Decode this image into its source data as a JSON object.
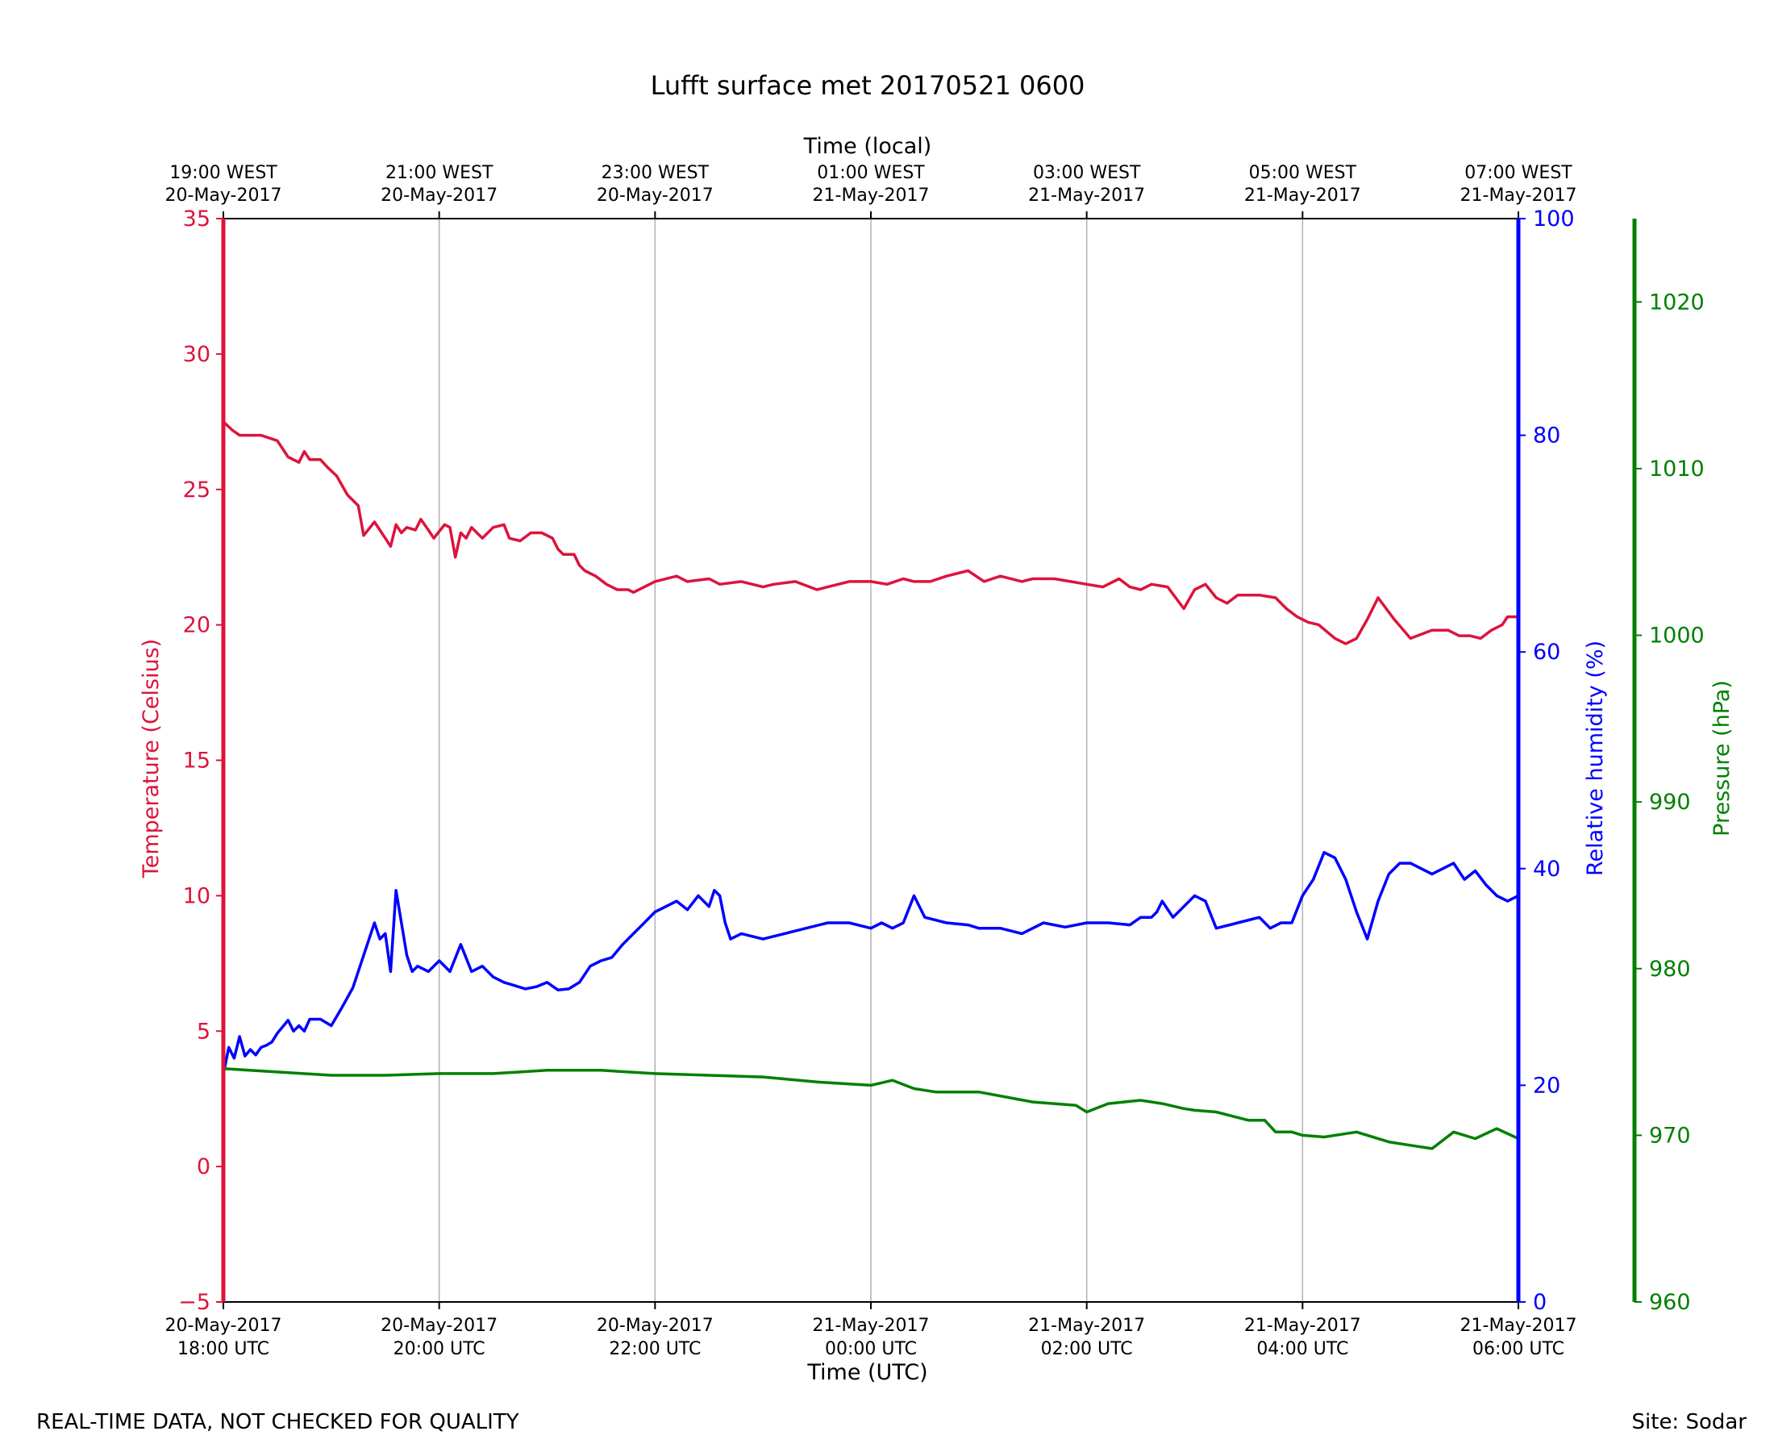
{
  "chart_data": {
    "type": "line",
    "title": "Lufft surface met 20170521 0600",
    "xlabel": "Time (UTC)",
    "x2label": "Time (local)",
    "xlim": [
      0,
      12
    ],
    "xticks": [
      {
        "hour": 0,
        "line1": "20-May-2017",
        "line2": "18:00 UTC"
      },
      {
        "hour": 2,
        "line1": "20-May-2017",
        "line2": "20:00 UTC"
      },
      {
        "hour": 4,
        "line1": "20-May-2017",
        "line2": "22:00 UTC"
      },
      {
        "hour": 6,
        "line1": "21-May-2017",
        "line2": "00:00 UTC"
      },
      {
        "hour": 8,
        "line1": "21-May-2017",
        "line2": "02:00 UTC"
      },
      {
        "hour": 10,
        "line1": "21-May-2017",
        "line2": "04:00 UTC"
      },
      {
        "hour": 12,
        "line1": "21-May-2017",
        "line2": "06:00 UTC"
      }
    ],
    "x2ticks": [
      {
        "hour": 0,
        "line1": "19:00 WEST",
        "line2": "20-May-2017"
      },
      {
        "hour": 2,
        "line1": "21:00 WEST",
        "line2": "20-May-2017"
      },
      {
        "hour": 4,
        "line1": "23:00 WEST",
        "line2": "20-May-2017"
      },
      {
        "hour": 6,
        "line1": "01:00 WEST",
        "line2": "21-May-2017"
      },
      {
        "hour": 8,
        "line1": "03:00 WEST",
        "line2": "21-May-2017"
      },
      {
        "hour": 10,
        "line1": "05:00 WEST",
        "line2": "21-May-2017"
      },
      {
        "hour": 12,
        "line1": "07:00 WEST",
        "line2": "21-May-2017"
      }
    ],
    "grid": "vertical",
    "axes": {
      "temperature": {
        "label": "Temperature (Celsius)",
        "ylim": [
          -5,
          35
        ],
        "ticks": [
          -5,
          0,
          5,
          10,
          15,
          20,
          25,
          30,
          35
        ],
        "tick_labels": [
          "−5",
          "0",
          "5",
          "10",
          "15",
          "20",
          "25",
          "30",
          "35"
        ],
        "color": "#dc143c",
        "position": "left"
      },
      "humidity": {
        "label": "Relative humidity (%)",
        "ylim": [
          0,
          100
        ],
        "ticks": [
          0,
          20,
          40,
          60,
          80,
          100
        ],
        "tick_labels": [
          "0",
          "20",
          "40",
          "60",
          "80",
          "100"
        ],
        "color": "#0000ff",
        "position": "right"
      },
      "pressure": {
        "label": "Pressure (hPa)",
        "ylim": [
          960,
          1025
        ],
        "ticks": [
          960,
          970,
          980,
          990,
          1000,
          1010,
          1020
        ],
        "tick_labels": [
          "960",
          "970",
          "980",
          "990",
          "1000",
          "1010",
          "1020"
        ],
        "color": "#008000",
        "position": "far-right"
      }
    },
    "series": [
      {
        "name": "Temperature (Celsius)",
        "axis": "temperature",
        "color": "#dc143c",
        "x": [
          0.0,
          0.08,
          0.15,
          0.25,
          0.35,
          0.5,
          0.6,
          0.7,
          0.75,
          0.8,
          0.9,
          0.97,
          1.05,
          1.15,
          1.25,
          1.3,
          1.4,
          1.45,
          1.5,
          1.55,
          1.6,
          1.65,
          1.7,
          1.78,
          1.83,
          1.9,
          1.95,
          2.05,
          2.1,
          2.15,
          2.2,
          2.25,
          2.3,
          2.35,
          2.4,
          2.5,
          2.6,
          2.65,
          2.75,
          2.85,
          2.95,
          3.05,
          3.1,
          3.15,
          3.25,
          3.3,
          3.35,
          3.45,
          3.55,
          3.65,
          3.75,
          3.8,
          4.0,
          4.2,
          4.3,
          4.5,
          4.6,
          4.8,
          5.0,
          5.1,
          5.3,
          5.5,
          5.6,
          5.8,
          6.0,
          6.15,
          6.3,
          6.4,
          6.55,
          6.7,
          6.9,
          7.05,
          7.2,
          7.4,
          7.5,
          7.7,
          7.85,
          8.0,
          8.15,
          8.3,
          8.4,
          8.5,
          8.6,
          8.75,
          8.9,
          9.0,
          9.1,
          9.2,
          9.3,
          9.4,
          9.6,
          9.75,
          9.85,
          9.95,
          10.05,
          10.15,
          10.3,
          10.4,
          10.5,
          10.6,
          10.7,
          10.85,
          11.0,
          11.2,
          11.35,
          11.45,
          11.55,
          11.65,
          11.75,
          11.85,
          11.9,
          12.0
        ],
        "y": [
          27.5,
          27.2,
          27.0,
          27.0,
          27.0,
          26.8,
          26.2,
          26.0,
          26.4,
          26.1,
          26.1,
          25.8,
          25.5,
          24.8,
          24.4,
          23.3,
          23.8,
          23.5,
          23.2,
          22.9,
          23.7,
          23.4,
          23.6,
          23.5,
          23.9,
          23.5,
          23.2,
          23.7,
          23.6,
          22.5,
          23.4,
          23.2,
          23.6,
          23.4,
          23.2,
          23.6,
          23.7,
          23.2,
          23.1,
          23.4,
          23.4,
          23.2,
          22.8,
          22.6,
          22.6,
          22.2,
          22.0,
          21.8,
          21.5,
          21.3,
          21.3,
          21.2,
          21.6,
          21.8,
          21.6,
          21.7,
          21.5,
          21.6,
          21.4,
          21.5,
          21.6,
          21.3,
          21.4,
          21.6,
          21.6,
          21.5,
          21.7,
          21.6,
          21.6,
          21.8,
          22.0,
          21.6,
          21.8,
          21.6,
          21.7,
          21.7,
          21.6,
          21.5,
          21.4,
          21.7,
          21.4,
          21.3,
          21.5,
          21.4,
          20.6,
          21.3,
          21.5,
          21.0,
          20.8,
          21.1,
          21.1,
          21.0,
          20.6,
          20.3,
          20.1,
          20.0,
          19.5,
          19.3,
          19.5,
          20.2,
          21.0,
          20.2,
          19.5,
          19.8,
          19.8,
          19.6,
          19.6,
          19.5,
          19.8,
          20.0,
          20.3,
          20.3
        ]
      },
      {
        "name": "Relative humidity (%)",
        "axis": "humidity",
        "color": "#0000ff",
        "x": [
          0.0,
          0.05,
          0.1,
          0.15,
          0.2,
          0.25,
          0.3,
          0.35,
          0.4,
          0.45,
          0.5,
          0.6,
          0.65,
          0.7,
          0.75,
          0.8,
          0.9,
          1.0,
          1.1,
          1.2,
          1.3,
          1.4,
          1.45,
          1.5,
          1.55,
          1.6,
          1.7,
          1.75,
          1.8,
          1.9,
          2.0,
          2.1,
          2.2,
          2.3,
          2.4,
          2.5,
          2.6,
          2.7,
          2.8,
          2.9,
          3.0,
          3.1,
          3.2,
          3.3,
          3.4,
          3.5,
          3.6,
          3.7,
          3.8,
          3.9,
          4.0,
          4.1,
          4.2,
          4.3,
          4.4,
          4.5,
          4.55,
          4.6,
          4.65,
          4.7,
          4.8,
          5.0,
          5.2,
          5.4,
          5.6,
          5.8,
          6.0,
          6.1,
          6.2,
          6.3,
          6.4,
          6.5,
          6.7,
          6.9,
          7.0,
          7.2,
          7.4,
          7.6,
          7.8,
          8.0,
          8.2,
          8.4,
          8.5,
          8.6,
          8.65,
          8.7,
          8.8,
          8.9,
          9.0,
          9.1,
          9.2,
          9.4,
          9.6,
          9.7,
          9.8,
          9.9,
          10.0,
          10.1,
          10.2,
          10.3,
          10.4,
          10.5,
          10.6,
          10.7,
          10.8,
          10.9,
          11.0,
          11.1,
          11.2,
          11.3,
          11.4,
          11.5,
          11.6,
          11.7,
          11.8,
          11.9,
          12.0
        ],
        "y": [
          21.0,
          23.5,
          22.5,
          24.5,
          22.7,
          23.3,
          22.8,
          23.5,
          23.7,
          24.0,
          24.8,
          26.0,
          25.0,
          25.5,
          25.0,
          26.1,
          26.1,
          25.5,
          27.2,
          29.0,
          32.0,
          35.0,
          33.5,
          34.0,
          30.5,
          38.0,
          32.0,
          30.5,
          31.0,
          30.5,
          31.5,
          30.5,
          33.0,
          30.5,
          31.0,
          30.0,
          29.5,
          29.2,
          28.9,
          29.1,
          29.5,
          28.8,
          28.9,
          29.5,
          31.0,
          31.5,
          31.8,
          33.0,
          34.0,
          35.0,
          36.0,
          36.5,
          37.0,
          36.2,
          37.5,
          36.5,
          38.0,
          37.5,
          35.0,
          33.5,
          34.0,
          33.5,
          34.0,
          34.5,
          35.0,
          35.0,
          34.5,
          35.0,
          34.5,
          35.0,
          37.5,
          35.5,
          35.0,
          34.8,
          34.5,
          34.5,
          34.0,
          35.0,
          34.6,
          35.0,
          35.0,
          34.8,
          35.5,
          35.5,
          36.0,
          37.0,
          35.5,
          36.5,
          37.5,
          37.0,
          34.5,
          35.0,
          35.5,
          34.5,
          35.0,
          35.0,
          37.5,
          39.0,
          41.5,
          41.0,
          39.0,
          36.0,
          33.5,
          37.0,
          39.5,
          40.5,
          40.5,
          40.0,
          39.5,
          40.0,
          40.5,
          39.0,
          39.8,
          38.5,
          37.5,
          37.0,
          37.5
        ]
      },
      {
        "name": "Pressure (hPa)",
        "axis": "pressure",
        "color": "#008000",
        "x": [
          0.0,
          0.5,
          1.0,
          1.5,
          2.0,
          2.5,
          3.0,
          3.5,
          4.0,
          4.5,
          5.0,
          5.5,
          6.0,
          6.2,
          6.4,
          6.6,
          6.8,
          7.0,
          7.5,
          7.9,
          8.0,
          8.2,
          8.5,
          8.7,
          8.9,
          9.0,
          9.2,
          9.5,
          9.65,
          9.75,
          9.9,
          10.0,
          10.2,
          10.5,
          10.8,
          11.0,
          11.2,
          11.4,
          11.6,
          11.8,
          12.0
        ],
        "y": [
          974.0,
          973.8,
          973.6,
          973.6,
          973.7,
          973.7,
          973.9,
          973.9,
          973.7,
          973.6,
          973.5,
          973.2,
          973.0,
          973.3,
          972.8,
          972.6,
          972.6,
          972.6,
          972.0,
          971.8,
          971.4,
          971.9,
          972.1,
          971.9,
          971.6,
          971.5,
          971.4,
          970.9,
          970.9,
          970.2,
          970.2,
          970.0,
          969.9,
          970.2,
          969.6,
          969.4,
          969.2,
          970.2,
          969.8,
          970.4,
          969.8
        ]
      }
    ]
  },
  "footer": {
    "left": "REAL-TIME DATA, NOT CHECKED FOR QUALITY",
    "right": "Site: Sodar"
  }
}
